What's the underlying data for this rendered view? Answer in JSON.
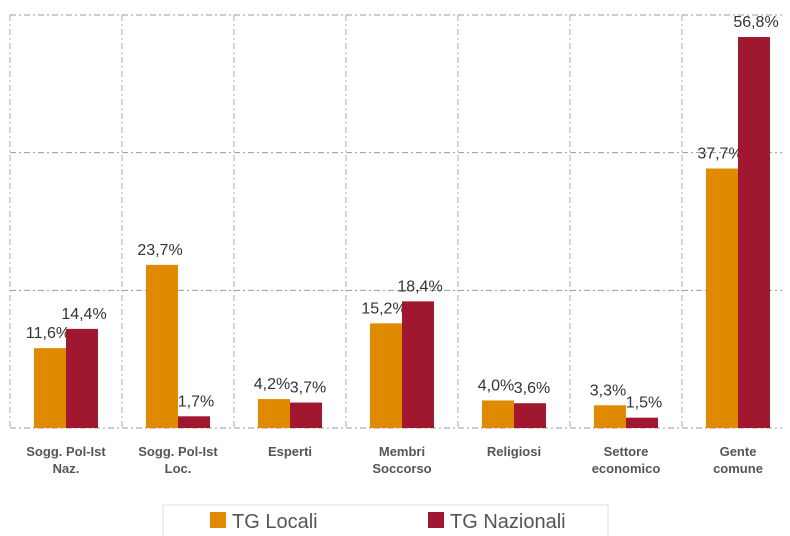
{
  "chart_data": {
    "type": "bar",
    "categories": [
      "Sogg. Pol-Ist\nNaz.",
      "Sogg. Pol-Ist\nLoc.",
      "Esperti",
      "Membri\nSoccorso",
      "Religiosi",
      "Settore\neconomico",
      "Gente\ncomune"
    ],
    "series": [
      {
        "name": "TG Locali",
        "color": "#e08a00",
        "values": [
          11.6,
          23.7,
          4.2,
          15.2,
          4.0,
          3.3,
          37.7
        ],
        "value_labels": [
          "11,6%",
          "23,7%",
          "4,2%",
          "15,2%",
          "4,0%",
          "3,3%",
          "37,7%"
        ]
      },
      {
        "name": "TG Nazionali",
        "color": "#a01830",
        "values": [
          14.4,
          1.7,
          3.7,
          18.4,
          3.6,
          1.5,
          56.8
        ],
        "value_labels": [
          "14,4%",
          "1,7%",
          "3,7%",
          "18,4%",
          "3,6%",
          "1,5%",
          "56,8%"
        ]
      }
    ],
    "ylim": [
      0,
      60
    ],
    "yticks": [
      0,
      20,
      40,
      60
    ],
    "grid": true
  }
}
